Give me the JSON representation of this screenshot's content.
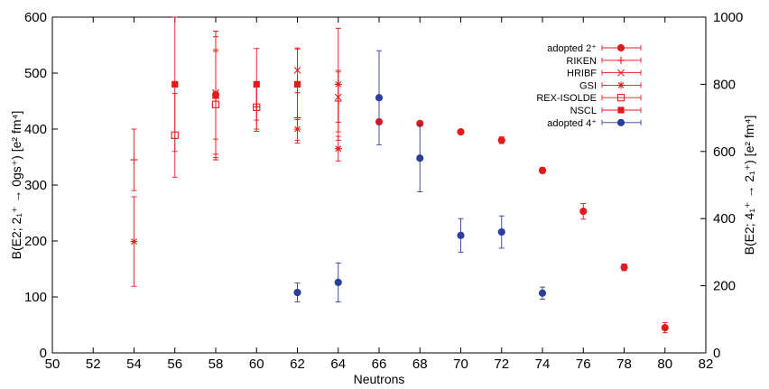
{
  "chart_data": {
    "type": "scatter",
    "xlabel": "Neutrons",
    "ylabel_left": "B(E2; 2₁⁺ → 0gs⁺) [e² fm⁴]",
    "ylabel_right": "B(E2; 4₁⁺ → 2₁⁺) [e² fm⁴]",
    "xlim": [
      50,
      82
    ],
    "ylim_left": [
      0,
      600
    ],
    "ylim_right": [
      0,
      1000
    ],
    "x_ticks": [
      50,
      52,
      54,
      56,
      58,
      60,
      62,
      64,
      66,
      68,
      70,
      72,
      74,
      76,
      78,
      80,
      82
    ],
    "y_ticks_left": [
      0,
      100,
      200,
      300,
      400,
      500,
      600
    ],
    "y_ticks_right": [
      0,
      200,
      400,
      600,
      800,
      1000
    ],
    "grid": false,
    "legend_position": "top-right",
    "colors": {
      "red": "#e31a1c",
      "blue": "#2b3f9a"
    },
    "series": [
      {
        "name": "adopted 2⁺",
        "marker": "filled-circle",
        "color": "#e31a1c",
        "axis": "left",
        "points": [
          {
            "x": 66,
            "y": 413,
            "err": 4
          },
          {
            "x": 68,
            "y": 410,
            "err": 4
          },
          {
            "x": 70,
            "y": 395,
            "err": 3
          },
          {
            "x": 72,
            "y": 380,
            "err": 6
          },
          {
            "x": 74,
            "y": 326,
            "err": 5
          },
          {
            "x": 76,
            "y": 253,
            "err": 14
          },
          {
            "x": 78,
            "y": 153,
            "err": 6
          },
          {
            "x": 80,
            "y": 45,
            "err": 9
          }
        ]
      },
      {
        "name": "RIKEN",
        "marker": "plus",
        "color": "#e31a1c",
        "axis": "left",
        "points": [
          {
            "x": 54,
            "y": 345,
            "err": 55
          },
          {
            "x": 58,
            "y": 455,
            "err": 110
          },
          {
            "x": 60,
            "y": 440,
            "err": 40
          },
          {
            "x": 62,
            "y": 420,
            "err": 45
          },
          {
            "x": 64,
            "y": 450,
            "err": 55
          }
        ]
      },
      {
        "name": "HRIBF",
        "marker": "cross",
        "color": "#e31a1c",
        "axis": "left",
        "points": [
          {
            "x": 58,
            "y": 465,
            "err": 110
          },
          {
            "x": 62,
            "y": 505,
            "err": 40
          },
          {
            "x": 64,
            "y": 457,
            "err": 45
          }
        ]
      },
      {
        "name": "GSI",
        "marker": "star",
        "color": "#e31a1c",
        "axis": "left",
        "points": [
          {
            "x": 54,
            "y": 199,
            "err": 80
          },
          {
            "x": 58,
            "y": 462,
            "err": 80
          },
          {
            "x": 62,
            "y": 400,
            "err": 20
          },
          {
            "x": 64,
            "y": 480,
            "err": 100
          },
          {
            "x": 64,
            "y": 365,
            "err": 22
          }
        ]
      },
      {
        "name": "REX-ISOLDE",
        "marker": "open-square",
        "color": "#e31a1c",
        "axis": "left",
        "points": [
          {
            "x": 56,
            "y": 389,
            "err": 75
          },
          {
            "x": 58,
            "y": 444,
            "err": 95
          },
          {
            "x": 60,
            "y": 439,
            "err": 43
          }
        ]
      },
      {
        "name": "NSCL",
        "marker": "filled-square",
        "color": "#e31a1c",
        "axis": "left",
        "points": [
          {
            "x": 56,
            "y": 480,
            "err": 120
          },
          {
            "x": 58,
            "y": 460,
            "err": 115
          },
          {
            "x": 60,
            "y": 480,
            "err": 64
          },
          {
            "x": 62,
            "y": 480,
            "err": 63
          }
        ]
      },
      {
        "name": "adopted 4⁺",
        "marker": "filled-circle",
        "color": "#2b3f9a",
        "axis": "right",
        "points": [
          {
            "x": 62,
            "y": 180,
            "err": 28
          },
          {
            "x": 64,
            "y": 210,
            "err": 58
          },
          {
            "x": 66,
            "y": 760,
            "err": 140
          },
          {
            "x": 68,
            "y": 580,
            "err": 100
          },
          {
            "x": 70,
            "y": 350,
            "err": 50
          },
          {
            "x": 72,
            "y": 360,
            "err": 48
          },
          {
            "x": 74,
            "y": 178,
            "err": 18
          }
        ]
      }
    ]
  }
}
